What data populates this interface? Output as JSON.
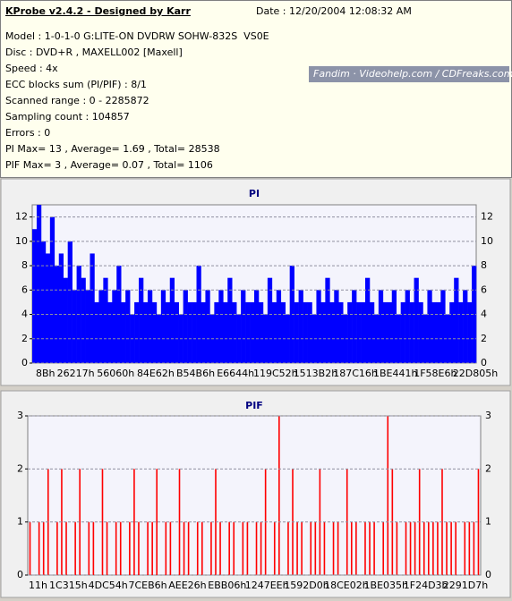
{
  "header": {
    "title": "KProbe v2.4.2 - Designed by Karr",
    "date": "Date : 12/20/2004 12:08:32 AM",
    "lines": [
      "Model : 1-0-1-0 G:LITE-ON DVDRW SOHW-832S  VS0E",
      "Disc : DVD+R , MAXELL002 [Maxell]",
      "Speed : 4x",
      "ECC blocks sum (PI/PIF) : 8/1",
      "Scanned range : 0 - 2285872",
      "Sampling count : 104857",
      "Errors : 0",
      "PI Max= 13 , Average= 1.69 , Total= 28538",
      "PIF Max= 3 , Average= 0.07 , Total= 1106"
    ],
    "watermark": "Fandim · Videohelp.com / CDFreaks.com"
  },
  "chart_data": [
    {
      "type": "bar",
      "title": "PI",
      "color": "#0000ff",
      "ylim": [
        0,
        13
      ],
      "yticks": [
        0,
        2,
        4,
        6,
        8,
        10,
        12
      ],
      "grid": true,
      "x_labels": [
        "8Bh",
        "26217h",
        "56060h",
        "84E62h",
        "B54B6h",
        "E6644h",
        "119C52h",
        "1513B2h",
        "187C16h",
        "1BE441h",
        "1F58E6h",
        "22D805h"
      ],
      "values": [
        11,
        13,
        10,
        9,
        12,
        8,
        9,
        7,
        10,
        6,
        8,
        7,
        6,
        9,
        5,
        6,
        7,
        5,
        6,
        8,
        5,
        6,
        4,
        5,
        7,
        5,
        6,
        5,
        4,
        6,
        5,
        7,
        5,
        4,
        6,
        5,
        5,
        8,
        5,
        6,
        4,
        5,
        6,
        5,
        7,
        5,
        4,
        6,
        5,
        5,
        6,
        5,
        4,
        7,
        5,
        6,
        5,
        4,
        8,
        5,
        6,
        5,
        5,
        4,
        6,
        5,
        7,
        5,
        6,
        5,
        4,
        5,
        6,
        5,
        5,
        7,
        5,
        4,
        6,
        5,
        5,
        6,
        4,
        5,
        6,
        5,
        7,
        5,
        4,
        6,
        5,
        5,
        6,
        4,
        5,
        7,
        5,
        6,
        5,
        8
      ]
    },
    {
      "type": "bar",
      "title": "PIF",
      "color": "#ff0000",
      "ylim": [
        0,
        3
      ],
      "yticks": [
        0,
        1,
        2,
        3
      ],
      "grid": true,
      "x_labels": [
        "11h",
        "1C315h",
        "4DC54h",
        "7CEB6h",
        "AEE26h",
        "EBB06h",
        "1247EEh",
        "1592D0h",
        "18CE02h",
        "1BE035h",
        "1F24D3h",
        "2291D7h"
      ],
      "values": [
        1,
        0,
        1,
        1,
        2,
        0,
        1,
        2,
        1,
        0,
        1,
        2,
        0,
        1,
        1,
        0,
        2,
        1,
        0,
        1,
        1,
        0,
        1,
        2,
        1,
        0,
        1,
        1,
        2,
        0,
        1,
        1,
        0,
        2,
        1,
        1,
        0,
        1,
        1,
        0,
        1,
        2,
        1,
        0,
        1,
        1,
        0,
        1,
        1,
        0,
        1,
        1,
        2,
        0,
        1,
        3,
        0,
        1,
        2,
        1,
        1,
        0,
        1,
        1,
        2,
        1,
        0,
        1,
        1,
        0,
        2,
        1,
        1,
        0,
        1,
        1,
        1,
        0,
        1,
        3,
        2,
        1,
        0,
        1,
        1,
        1,
        2,
        1,
        1,
        1,
        1,
        2,
        1,
        1,
        1,
        0,
        1,
        1,
        1,
        2
      ]
    }
  ]
}
